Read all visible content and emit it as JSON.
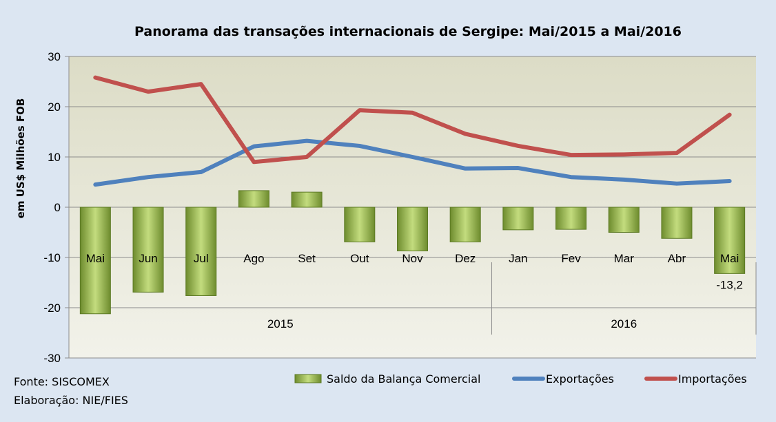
{
  "chart_data": {
    "type": "bar+line",
    "title": "Panorama das transações internacionais de Sergipe: Mai/2015 a Mai/2016",
    "ylabel": "em US$ Milhões FOB",
    "ylim": [
      -30,
      30
    ],
    "yticks": [
      "30",
      "20",
      "10",
      "0",
      "-10",
      "-20",
      "-30"
    ],
    "categories": [
      "Mai",
      "Jun",
      "Jul",
      "Ago",
      "Set",
      "Out",
      "Nov",
      "Dez",
      "Jan",
      "Fev",
      "Mar",
      "Abr",
      "Mai"
    ],
    "groups": [
      {
        "label": "2015",
        "span": 8
      },
      {
        "label": "2016",
        "span": 5
      }
    ],
    "grid": true,
    "legend_position": "bottom",
    "series": [
      {
        "name": "Saldo da Balança Comercial",
        "type": "bar",
        "color": "#9bbb59",
        "values": [
          -21.2,
          -16.9,
          -17.6,
          3.3,
          3.0,
          -6.9,
          -8.7,
          -6.9,
          -4.5,
          -4.4,
          -5.0,
          -6.2,
          -13.2
        ]
      },
      {
        "name": "Exportações",
        "type": "line",
        "color": "#4f81bd",
        "values": [
          4.5,
          6.0,
          7.0,
          12.1,
          13.2,
          12.2,
          10.0,
          7.7,
          7.8,
          6.0,
          5.5,
          4.7,
          5.2
        ]
      },
      {
        "name": "Importações",
        "type": "line",
        "color": "#c0504d",
        "values": [
          25.8,
          23.0,
          24.5,
          9.0,
          10.0,
          19.3,
          18.8,
          14.6,
          12.2,
          10.4,
          10.5,
          10.8,
          18.4
        ]
      }
    ],
    "data_labels": [
      {
        "index": 12,
        "text": "-13,2"
      }
    ]
  },
  "footer": {
    "source": "Fonte: SISCOMEX",
    "credit": "Elaboração: NIE/FIES"
  }
}
